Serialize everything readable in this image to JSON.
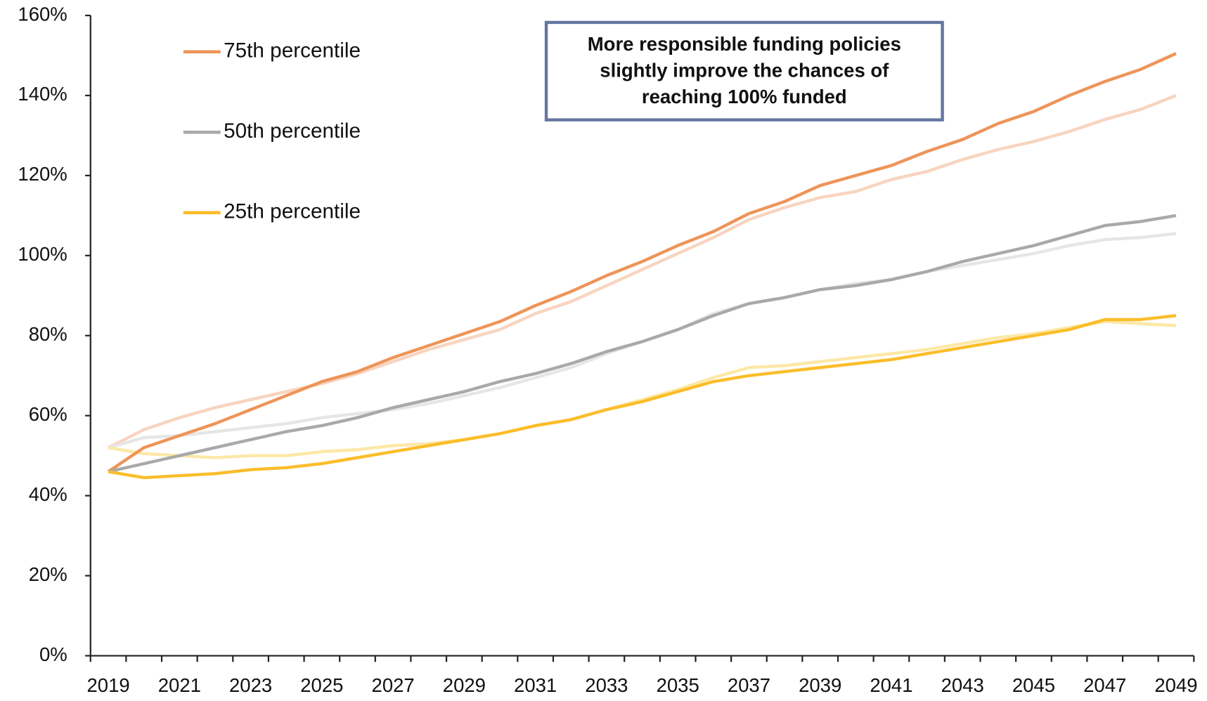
{
  "chart_data": {
    "type": "line",
    "categories": [
      "2019",
      null,
      "2021",
      null,
      "2023",
      null,
      "2025",
      null,
      "2027",
      null,
      "2029",
      null,
      "2031",
      null,
      "2033",
      null,
      "2035",
      null,
      "2037",
      null,
      "2039",
      null,
      "2041",
      null,
      "2043",
      null,
      "2045",
      null,
      "2047",
      null,
      "2049"
    ],
    "ylim": [
      0,
      160
    ],
    "yticks": [
      {
        "value": 0,
        "label": "0%"
      },
      {
        "value": 20,
        "label": "20%"
      },
      {
        "value": 40,
        "label": "40%"
      },
      {
        "value": 60,
        "label": "60%"
      },
      {
        "value": 80,
        "label": "80%"
      },
      {
        "value": 100,
        "label": "100%"
      },
      {
        "value": 120,
        "label": "120%"
      },
      {
        "value": 140,
        "label": "140%"
      },
      {
        "value": 160,
        "label": "160%"
      }
    ],
    "legend_position": "top-left",
    "annotation": [
      "More responsible funding policies",
      "slightly improve the chances of",
      "reaching 100% funded"
    ],
    "series": [
      {
        "color": "#f8d4bf",
        "values": [
          52,
          56.5,
          59.5,
          62,
          64,
          66,
          68,
          70.5,
          73.5,
          76.5,
          79,
          81.5,
          85.5,
          88.5,
          92.5,
          96.5,
          100.5,
          104.5,
          109,
          112,
          114.5,
          116,
          119,
          121,
          124,
          126.5,
          128.5,
          131,
          134,
          136.5,
          140
        ]
      },
      {
        "color": "#e6e6e6",
        "values": [
          52,
          54.5,
          55,
          56,
          57,
          58,
          59.5,
          60.5,
          61.5,
          63,
          65,
          67,
          69.5,
          72,
          75.5,
          78.5,
          81.5,
          85.5,
          88,
          89.5,
          91.5,
          93,
          94,
          96,
          97.5,
          99,
          100.5,
          102.5,
          104,
          104.5,
          105.5
        ]
      },
      {
        "color": "#fde8a6",
        "values": [
          52,
          50.5,
          50,
          49.5,
          50,
          50,
          51,
          51.5,
          52.5,
          53,
          54,
          55.5,
          57.5,
          59,
          61.5,
          64,
          66.5,
          69.5,
          72,
          72.5,
          73.5,
          74.5,
          75.5,
          76.5,
          78,
          79.5,
          80.5,
          82,
          83.5,
          83,
          82.5
        ]
      },
      {
        "name": "75th percentile",
        "color": "#ee9459",
        "values": [
          46,
          52,
          55,
          58,
          61.5,
          65,
          68.5,
          71,
          74.5,
          77.5,
          80.5,
          83.5,
          87.5,
          91,
          95,
          98.5,
          102.5,
          106,
          110.5,
          113.5,
          117.5,
          120,
          122.5,
          126,
          129,
          133,
          136,
          140,
          143.5,
          146.5,
          150.5
        ]
      },
      {
        "name": "50th percentile",
        "color": "#a9a9a9",
        "values": [
          46,
          48,
          50,
          52,
          54,
          56,
          57.5,
          59.5,
          62,
          64,
          66,
          68.5,
          70.5,
          73,
          76,
          78.5,
          81.5,
          85,
          88,
          89.5,
          91.5,
          92.5,
          94,
          96,
          98.5,
          100.5,
          102.5,
          105,
          107.5,
          108.5,
          110
        ]
      },
      {
        "name": "25th percentile",
        "color": "#fbbd2a",
        "values": [
          46,
          44.5,
          45,
          45.5,
          46.5,
          47,
          48,
          49.5,
          51,
          52.5,
          54,
          55.5,
          57.5,
          59,
          61.5,
          63.5,
          66,
          68.5,
          70,
          71,
          72,
          73,
          74,
          75.5,
          77,
          78.5,
          80,
          81.5,
          84,
          84,
          85
        ]
      }
    ]
  }
}
